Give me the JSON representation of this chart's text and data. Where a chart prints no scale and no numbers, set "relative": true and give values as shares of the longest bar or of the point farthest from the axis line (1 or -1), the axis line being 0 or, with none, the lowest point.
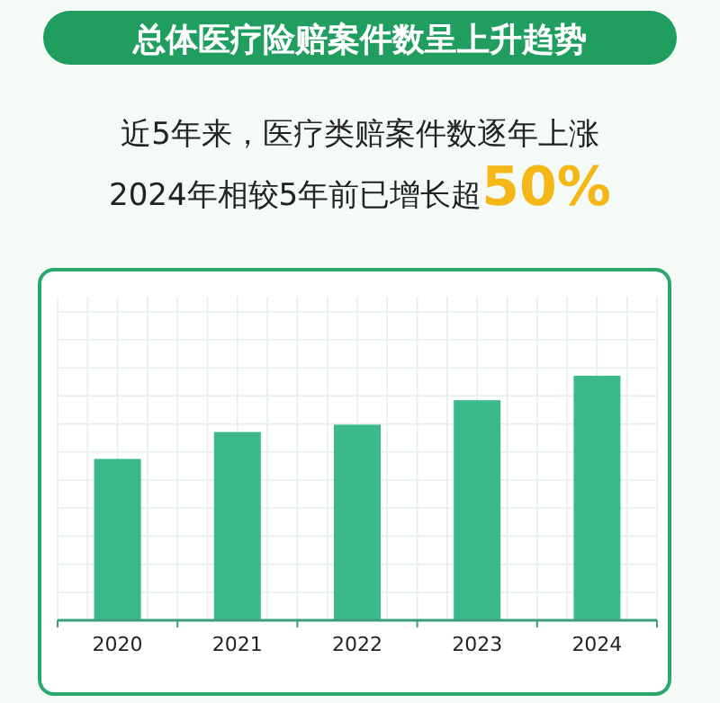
{
  "chart_data": {
    "type": "bar",
    "title": "总体医疗险赔案件数呈上升趋势",
    "subtitle": "近5年来，医疗类赔案件数逐年上涨",
    "annotations": [
      "2024年相较5年前已增长超**50%**"
    ],
    "categories": [
      "2020",
      "2021",
      "2022",
      "2023",
      "2024"
    ],
    "values": [
      0.66,
      0.77,
      0.8,
      0.9,
      1
    ],
    "color": "#3cb98a",
    "relative": true,
    "grid": true
  }
}
